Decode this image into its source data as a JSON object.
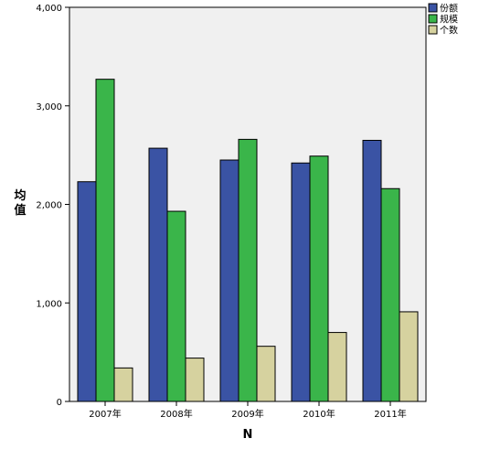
{
  "chart_data": {
    "type": "bar",
    "title": "",
    "xlabel": "N",
    "ylabel": "均值",
    "categories": [
      "2007年",
      "2008年",
      "2009年",
      "2010年",
      "2011年"
    ],
    "series": [
      {
        "name": "份额",
        "color": "#3a53a4",
        "values": [
          2230,
          2570,
          2450,
          2420,
          2650
        ]
      },
      {
        "name": "规模",
        "color": "#3ab54a",
        "values": [
          3270,
          1930,
          2660,
          2490,
          2160
        ]
      },
      {
        "name": "个数",
        "color": "#d6d29f",
        "values": [
          340,
          440,
          560,
          700,
          910
        ]
      }
    ],
    "ylim": [
      0,
      4000
    ],
    "yticks": [
      0,
      1000,
      2000,
      3000,
      4000
    ],
    "ytick_labels": [
      "0",
      "1,000",
      "2,000",
      "3,000",
      "4,000"
    ],
    "grid": false,
    "legend_position": "top-right",
    "plot_background": "#f0f0f0"
  }
}
